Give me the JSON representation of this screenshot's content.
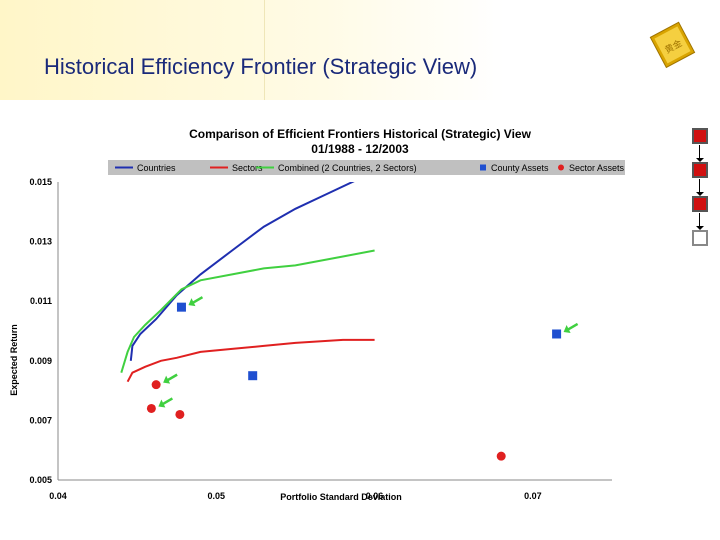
{
  "slide": {
    "title": "Historical Efficiency Frontier (Strategic View)",
    "logo_text": "黄金"
  },
  "chart_data": {
    "type": "line",
    "title": "Comparison of Efficient Frontiers Historical (Strategic) View",
    "subtitle": "01/1988 - 12/2003",
    "xlabel": "Portfolio Standard Deviation",
    "ylabel": "Expected Return",
    "xlim": [
      0.04,
      0.075
    ],
    "ylim": [
      0.005,
      0.015
    ],
    "x_ticks": [
      "0.04",
      "0.05",
      "0.06",
      "0.07"
    ],
    "y_ticks": [
      "0.005",
      "0.007",
      "0.009",
      "0.011",
      "0.013",
      "0.015"
    ],
    "legend_position": "top",
    "grid": false,
    "series": [
      {
        "name": "Countries",
        "kind": "line",
        "color": "#1f2fb0",
        "points": [
          [
            0.0446,
            0.009
          ],
          [
            0.0447,
            0.0095
          ],
          [
            0.0452,
            0.0099
          ],
          [
            0.0462,
            0.0104
          ],
          [
            0.0475,
            0.0112
          ],
          [
            0.049,
            0.0119
          ],
          [
            0.051,
            0.0127
          ],
          [
            0.053,
            0.0135
          ],
          [
            0.055,
            0.0141
          ],
          [
            0.057,
            0.0146
          ],
          [
            0.059,
            0.0151
          ],
          [
            0.06,
            0.0153
          ]
        ]
      },
      {
        "name": "Sectors",
        "kind": "line",
        "color": "#e02020",
        "points": [
          [
            0.0444,
            0.0083
          ],
          [
            0.0447,
            0.0086
          ],
          [
            0.0455,
            0.0088
          ],
          [
            0.0465,
            0.009
          ],
          [
            0.0475,
            0.0091
          ],
          [
            0.049,
            0.0093
          ],
          [
            0.051,
            0.0094
          ],
          [
            0.053,
            0.0095
          ],
          [
            0.055,
            0.0096
          ],
          [
            0.058,
            0.0097
          ],
          [
            0.06,
            0.0097
          ]
        ]
      },
      {
        "name": "Combined (2 Countries, 2 Sectors)",
        "kind": "line",
        "color": "#40d040",
        "points": [
          [
            0.044,
            0.0086
          ],
          [
            0.0444,
            0.0093
          ],
          [
            0.0448,
            0.0098
          ],
          [
            0.0455,
            0.0102
          ],
          [
            0.0465,
            0.0107
          ],
          [
            0.0478,
            0.0114
          ],
          [
            0.049,
            0.0117
          ],
          [
            0.051,
            0.0119
          ],
          [
            0.053,
            0.0121
          ],
          [
            0.055,
            0.0122
          ],
          [
            0.058,
            0.0125
          ],
          [
            0.06,
            0.0127
          ]
        ]
      },
      {
        "name": "County Assets",
        "kind": "square",
        "color": "#1f4fd0",
        "points": [
          [
            0.0478,
            0.0108
          ],
          [
            0.0523,
            0.0085
          ],
          [
            0.0715,
            0.0099
          ]
        ]
      },
      {
        "name": "Sector Assets",
        "kind": "circle",
        "color": "#e02020",
        "points": [
          [
            0.0462,
            0.0082
          ],
          [
            0.0459,
            0.0074
          ],
          [
            0.0477,
            0.0072
          ],
          [
            0.068,
            0.0058
          ]
        ]
      }
    ],
    "annotations": [
      {
        "kind": "green-arrow",
        "target": [
          0.0478,
          0.0108
        ]
      },
      {
        "kind": "green-arrow",
        "target": [
          0.0462,
          0.0082
        ]
      },
      {
        "kind": "green-arrow",
        "target": [
          0.0459,
          0.0074
        ]
      },
      {
        "kind": "green-arrow",
        "target": [
          0.0715,
          0.0099
        ]
      }
    ]
  },
  "nav": {
    "items": [
      {
        "state": "filled",
        "color": "#d01010"
      },
      {
        "state": "filled",
        "color": "#d01010"
      },
      {
        "state": "filled",
        "color": "#d01010"
      },
      {
        "state": "empty",
        "color": "#ffffff"
      }
    ]
  }
}
